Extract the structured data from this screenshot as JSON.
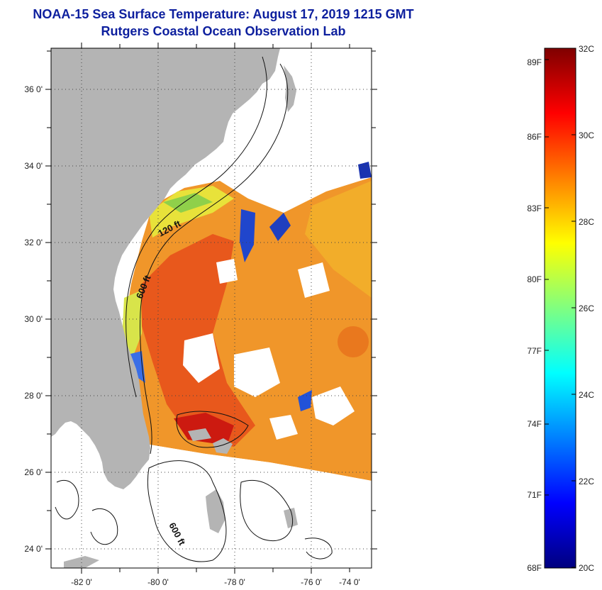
{
  "header": {
    "title_line1": "NOAA-15 Sea Surface Temperature:  August 17, 2019 1215 GMT",
    "title_line2": "Rutgers Coastal Ocean Observation Lab"
  },
  "map": {
    "lat_labels": [
      "36 0'",
      "34 0'",
      "32 0'",
      "30 0'",
      "28 0'",
      "26 0'",
      "24 0'"
    ],
    "lon_labels": [
      "-82 0'",
      "-80 0'",
      "-78 0'",
      "-76 0'",
      "-74 0'"
    ],
    "contours": {
      "label_120": "120 ft",
      "label_600_north": "600 ft",
      "label_600_south": "600 ft"
    }
  },
  "colorbar": {
    "f_labels": [
      "89F",
      "86F",
      "83F",
      "80F",
      "77F",
      "74F",
      "71F",
      "68F"
    ],
    "c_labels": [
      "32C",
      "30C",
      "28C",
      "26C",
      "24C",
      "22C",
      "20C"
    ],
    "gradient_colors": [
      "#00007f",
      "#0000ff",
      "#0080ff",
      "#00ffff",
      "#80ff80",
      "#ffff00",
      "#ff8000",
      "#ff0000",
      "#7f0000"
    ]
  },
  "colors": {
    "land": "#b4b4b4",
    "ocean_warm": "#f0962a",
    "ocean_hot": "#e84a1a",
    "ocean_mild": "#f4c020",
    "cool": "#2860e8",
    "title": "#0d1f9e"
  }
}
